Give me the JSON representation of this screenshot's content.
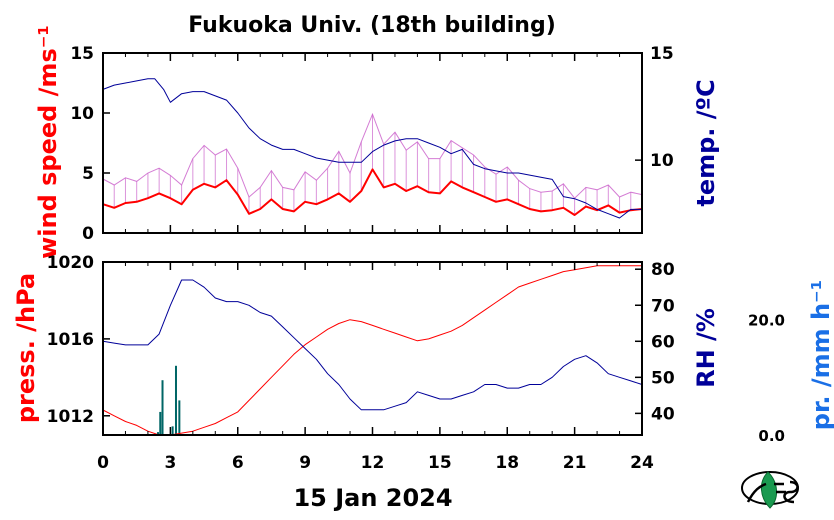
{
  "title": "Fukuoka Univ. (18th building)",
  "date_label": "15 Jan 2024",
  "colors": {
    "wind_mean": "#ff0000",
    "wind_gust": "#cc66cc",
    "temperature": "#000099",
    "pressure": "#ff0000",
    "humidity": "#000099",
    "precipitation": "#006666",
    "precip_label": "#1a6fe6"
  },
  "logo_icon": "fes-leaf-logo",
  "chart_data": [
    {
      "type": "line",
      "panel": "top-left-axis",
      "ylabel": "wind speed /ms⁻¹",
      "ylim": [
        0,
        15
      ],
      "yticks": [
        "0",
        "5",
        "10",
        "15"
      ],
      "xlim": [
        0,
        24
      ],
      "series": [
        {
          "role": "mean",
          "x": [
            0,
            0.5,
            1,
            1.5,
            2,
            2.5,
            3,
            3.5,
            4,
            4.5,
            5,
            5.5,
            6,
            6.5,
            7,
            7.5,
            8,
            8.5,
            9,
            9.5,
            10,
            10.5,
            11,
            11.5,
            12,
            12.5,
            13,
            13.5,
            14,
            14.5,
            15,
            15.5,
            16,
            16.5,
            17,
            17.5,
            18,
            18.5,
            19,
            19.5,
            20,
            20.5,
            21,
            21.5,
            22,
            22.5,
            23,
            23.5,
            24
          ],
          "values": [
            2.4,
            2.1,
            2.5,
            2.6,
            2.9,
            3.3,
            2.9,
            2.4,
            3.6,
            4.1,
            3.8,
            4.4,
            3.2,
            1.6,
            2.0,
            2.8,
            2.0,
            1.8,
            2.6,
            2.4,
            2.8,
            3.3,
            2.6,
            3.5,
            5.3,
            3.8,
            4.1,
            3.5,
            3.9,
            3.4,
            3.3,
            4.3,
            3.8,
            3.4,
            3.0,
            2.6,
            2.8,
            2.4,
            2.0,
            1.8,
            1.9,
            2.1,
            1.5,
            2.2,
            1.9,
            2.3,
            1.7,
            1.9,
            2.0
          ]
        },
        {
          "role": "gust",
          "x": [
            0,
            0.5,
            1,
            1.5,
            2,
            2.5,
            3,
            3.5,
            4,
            4.5,
            5,
            5.5,
            6,
            6.5,
            7,
            7.5,
            8,
            8.5,
            9,
            9.5,
            10,
            10.5,
            11,
            11.5,
            12,
            12.5,
            13,
            13.5,
            14,
            14.5,
            15,
            15.5,
            16,
            16.5,
            17,
            17.5,
            18,
            18.5,
            19,
            19.5,
            20,
            20.5,
            21,
            21.5,
            22,
            22.5,
            23,
            23.5,
            24
          ],
          "values": [
            4.5,
            4.0,
            4.6,
            4.3,
            5.0,
            5.4,
            4.8,
            4.0,
            6.2,
            7.3,
            6.5,
            7.0,
            5.4,
            3.0,
            3.8,
            5.2,
            3.8,
            3.6,
            5.1,
            4.4,
            5.4,
            6.8,
            5.0,
            7.6,
            9.9,
            7.4,
            8.4,
            6.9,
            7.6,
            6.2,
            6.2,
            7.7,
            7.1,
            6.5,
            5.5,
            4.9,
            5.5,
            4.4,
            3.7,
            3.4,
            3.5,
            4.1,
            2.9,
            3.8,
            3.6,
            4.0,
            3.0,
            3.4,
            3.2
          ]
        }
      ]
    },
    {
      "type": "line",
      "panel": "top-right-axis",
      "ylabel": "temp. /ºC",
      "ylim": [
        6.6,
        15
      ],
      "yticks": [
        "10",
        "15"
      ],
      "xlim": [
        0,
        24
      ],
      "series": [
        {
          "role": "temperature",
          "x": [
            0,
            0.5,
            1,
            1.5,
            2,
            2.3,
            2.7,
            3.0,
            3.5,
            4,
            4.5,
            5,
            5.5,
            6,
            6.5,
            7,
            7.5,
            8,
            8.5,
            9,
            9.5,
            10,
            10.5,
            11,
            11.5,
            12,
            12.5,
            13,
            13.5,
            14,
            14.5,
            15,
            15.5,
            16,
            16.5,
            17,
            17.5,
            18,
            18.5,
            19,
            19.5,
            20,
            20.5,
            21,
            21.5,
            22,
            22.5,
            23,
            23.5,
            24
          ],
          "values": [
            13.3,
            13.5,
            13.6,
            13.7,
            13.8,
            13.8,
            13.3,
            12.7,
            13.1,
            13.2,
            13.2,
            13.0,
            12.8,
            12.2,
            11.5,
            11.0,
            10.7,
            10.5,
            10.5,
            10.3,
            10.1,
            10.0,
            9.9,
            9.9,
            9.9,
            10.4,
            10.7,
            10.9,
            11.0,
            11.0,
            10.8,
            10.6,
            10.3,
            10.5,
            9.8,
            9.6,
            9.5,
            9.4,
            9.4,
            9.3,
            9.2,
            9.1,
            8.3,
            8.2,
            8.0,
            7.7,
            7.5,
            7.3,
            7.7,
            7.7
          ]
        }
      ]
    },
    {
      "type": "line",
      "panel": "bottom-left-axis",
      "ylabel": "press. /hPa",
      "ylim": [
        1011,
        1020
      ],
      "yticks": [
        "1012",
        "1016",
        "1020"
      ],
      "xlim": [
        0,
        24
      ],
      "series": [
        {
          "role": "pressure",
          "x": [
            0,
            0.5,
            1,
            1.5,
            2,
            2.5,
            3,
            3.5,
            4,
            4.5,
            5,
            5.5,
            6,
            6.5,
            7,
            7.5,
            8,
            8.5,
            9,
            9.5,
            10,
            10.5,
            11,
            11.5,
            12,
            12.5,
            13,
            13.5,
            14,
            14.5,
            15,
            15.5,
            16,
            16.5,
            17,
            17.5,
            18,
            18.5,
            19,
            19.5,
            20,
            20.5,
            21,
            21.5,
            22,
            22.5,
            23,
            23.5,
            24
          ],
          "values": [
            1012.3,
            1012.0,
            1011.7,
            1011.5,
            1011.2,
            1011.0,
            1011.0,
            1011.1,
            1011.2,
            1011.4,
            1011.6,
            1011.9,
            1012.2,
            1012.8,
            1013.4,
            1014.0,
            1014.6,
            1015.2,
            1015.7,
            1016.1,
            1016.5,
            1016.8,
            1017.0,
            1016.9,
            1016.7,
            1016.5,
            1016.3,
            1016.1,
            1015.9,
            1016.0,
            1016.2,
            1016.4,
            1016.7,
            1017.1,
            1017.5,
            1017.9,
            1018.3,
            1018.7,
            1018.9,
            1019.1,
            1019.3,
            1019.5,
            1019.6,
            1019.7,
            1019.8,
            1019.8,
            1019.8,
            1019.8,
            1019.8
          ]
        }
      ]
    },
    {
      "type": "line",
      "panel": "bottom-right-axis",
      "ylabel": "RH /%",
      "ylim": [
        34,
        82
      ],
      "yticks": [
        "40",
        "50",
        "60",
        "70",
        "80"
      ],
      "xlim": [
        0,
        24
      ],
      "series": [
        {
          "role": "humidity",
          "x": [
            0,
            0.5,
            1,
            1.5,
            2,
            2.5,
            3,
            3.5,
            4,
            4.5,
            5,
            5.5,
            6,
            6.5,
            7,
            7.5,
            8,
            8.5,
            9,
            9.5,
            10,
            10.5,
            11,
            11.5,
            12,
            12.5,
            13,
            13.5,
            14,
            14.5,
            15,
            15.5,
            16,
            16.5,
            17,
            17.5,
            18,
            18.5,
            19,
            19.5,
            20,
            20.5,
            21,
            21.5,
            22,
            22.5,
            23,
            23.5,
            24
          ],
          "values": [
            60,
            59.5,
            59,
            59,
            59,
            62,
            70,
            77,
            77,
            75,
            72,
            71,
            71,
            70,
            68,
            67,
            64,
            61,
            58,
            55,
            51,
            48,
            44,
            41,
            41,
            41,
            42,
            43,
            46,
            45,
            44,
            44,
            45,
            46,
            48,
            48,
            47,
            47,
            48,
            48,
            50,
            53,
            55,
            56,
            54,
            51,
            50,
            49,
            48
          ]
        }
      ]
    },
    {
      "type": "bar",
      "panel": "bottom-precip-axis",
      "ylabel": "pr. /mm h⁻¹",
      "ylim": [
        0,
        30
      ],
      "yticks": [
        "0.0",
        "20.0"
      ],
      "x": [
        2.45,
        2.55,
        2.65,
        3.1,
        3.25,
        3.4
      ],
      "values": [
        0.5,
        4.0,
        9.5,
        1.5,
        12.0,
        6.0
      ]
    }
  ],
  "x_axis": {
    "ticks": [
      "0",
      "3",
      "6",
      "9",
      "12",
      "15",
      "18",
      "21",
      "24"
    ]
  }
}
